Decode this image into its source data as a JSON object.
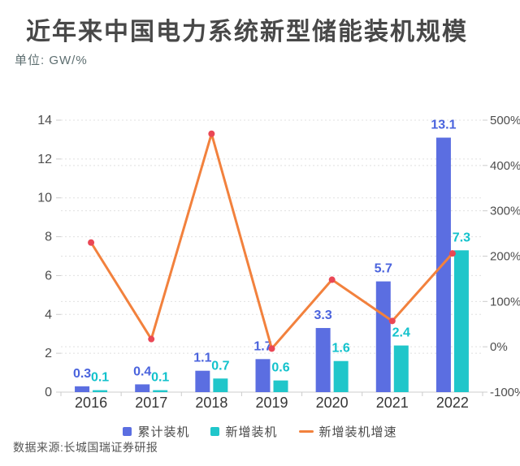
{
  "header": {
    "title": "近年来中国电力系统新型储能装机规模",
    "unit": "单位: GW/%"
  },
  "footer": {
    "source": "数据来源:长城国瑞证券研报"
  },
  "colors": {
    "cumulative_bar": "#5b6ee1",
    "cumulative_label": "#4a63dd",
    "new_bar": "#20c6ca",
    "new_label": "#13c2cc",
    "growth_line": "#f2813d",
    "growth_point": "#ea4755",
    "grid_line": "#e0e0e0",
    "axis_line": "#cccccc",
    "axis_text": "#4e4e4e",
    "year_text": "#363636"
  },
  "chart_data": {
    "type": "bar",
    "subtype": "grouped bars with secondary-axis line",
    "title": "近年来中国电力系统新型储能装机规模",
    "unit_label": "单位: GW/%",
    "categories": [
      "2016",
      "2017",
      "2018",
      "2019",
      "2020",
      "2021",
      "2022"
    ],
    "series": [
      {
        "name": "累计装机",
        "type": "bar",
        "axis": "left",
        "color": "#5b6ee1",
        "label_color": "#4a63dd",
        "values": [
          0.3,
          0.4,
          1.1,
          1.7,
          3.3,
          5.7,
          13.1
        ]
      },
      {
        "name": "新增装机",
        "type": "bar",
        "axis": "left",
        "color": "#20c6ca",
        "label_color": "#13c2cc",
        "values": [
          0.1,
          0.1,
          0.7,
          0.6,
          1.6,
          2.4,
          7.3
        ]
      },
      {
        "name": "新增装机增速",
        "type": "line",
        "axis": "right",
        "color": "#f2813d",
        "point_color": "#ea4755",
        "unit": "%",
        "values": [
          230,
          17,
          470,
          -4,
          148,
          57,
          206
        ]
      }
    ],
    "left_axis": {
      "min": 0,
      "max": 14,
      "tick_step": 2,
      "ticks": [
        0,
        2,
        4,
        6,
        8,
        10,
        12,
        14
      ]
    },
    "right_axis": {
      "min": -100,
      "max": 500,
      "tick_step": 100,
      "ticks": [
        "-100%",
        "0%",
        "100%",
        "200%",
        "300%",
        "400%",
        "500%"
      ]
    },
    "grid": "horizontal dashed",
    "legend_position": "bottom",
    "xlabel": "",
    "ylabel_left": "GW",
    "ylabel_right": "%"
  }
}
